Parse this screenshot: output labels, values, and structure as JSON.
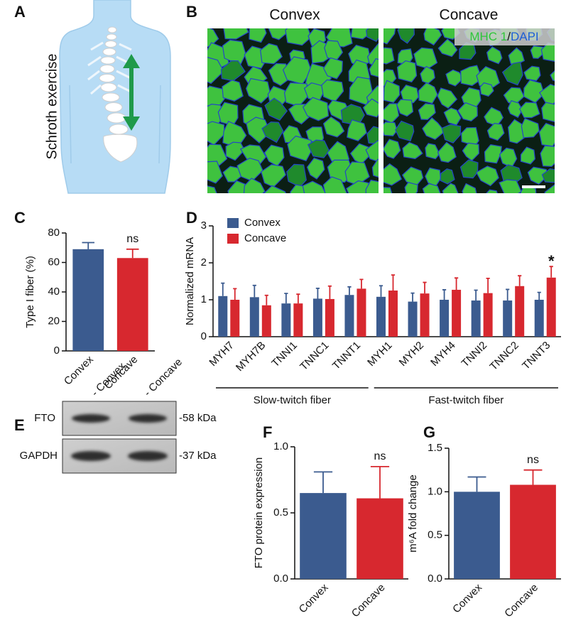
{
  "panel_a": {
    "label": "A",
    "caption": "Schroth exercise"
  },
  "panel_b": {
    "label": "B",
    "columns": [
      "Convex",
      "Concave"
    ],
    "stain": [
      "MHC 1",
      "/",
      "DAPI"
    ]
  },
  "panel_e": {
    "label": "E",
    "lanes": [
      "- Convex",
      "- Concave"
    ],
    "rows": [
      {
        "protein": "FTO",
        "size": "-58 kDa"
      },
      {
        "protein": "GAPDH",
        "size": "-37 kDa"
      }
    ]
  },
  "chart_data": [
    {
      "panel": "C",
      "type": "bar",
      "ylabel": "Type I fiber (%)",
      "categories": [
        "Convex",
        "Concave"
      ],
      "values": [
        69,
        63
      ],
      "errors": [
        4.5,
        6
      ],
      "colors": [
        "#3b5b8f",
        "#d7282f"
      ],
      "ylim": [
        0,
        80
      ],
      "yticks": [
        0,
        20,
        40,
        60,
        80
      ],
      "annotations": [
        {
          "text": "ns",
          "category": "Concave"
        }
      ]
    },
    {
      "panel": "D",
      "type": "grouped_bar",
      "ylabel": "Normalized mRNA",
      "categories": [
        "MYH7",
        "MYH7B",
        "TNNI1",
        "TNNC1",
        "TNNT1",
        "MYH1",
        "MYH2",
        "MYH4",
        "TNNI2",
        "TNNC2",
        "TNNT3"
      ],
      "series": [
        {
          "name": "Convex",
          "color": "#3b5b8f",
          "values": [
            1.1,
            1.07,
            0.9,
            1.03,
            1.13,
            1.08,
            0.95,
            1.0,
            0.98,
            0.98,
            1.0
          ],
          "errors": [
            0.35,
            0.32,
            0.27,
            0.28,
            0.22,
            0.3,
            0.23,
            0.27,
            0.28,
            0.3,
            0.2
          ]
        },
        {
          "name": "Concave",
          "color": "#d7282f",
          "values": [
            1.0,
            0.85,
            0.9,
            1.02,
            1.3,
            1.25,
            1.17,
            1.27,
            1.18,
            1.37,
            1.6
          ],
          "errors": [
            0.3,
            0.27,
            0.25,
            0.35,
            0.25,
            0.42,
            0.3,
            0.32,
            0.4,
            0.28,
            0.3
          ]
        }
      ],
      "ylim": [
        0,
        3
      ],
      "yticks": [
        0,
        1,
        2,
        3
      ],
      "legend": "upper left",
      "groups": [
        {
          "label": "Slow-twitch fiber",
          "size": 5
        },
        {
          "label": "Fast-twitch fiber",
          "size": 6
        }
      ],
      "annotations": [
        {
          "text": "*",
          "category": "TNNT3",
          "series": "Concave"
        }
      ]
    },
    {
      "panel": "F",
      "type": "bar",
      "ylabel": "FTO protein expression",
      "categories": [
        "Convex",
        "Concave"
      ],
      "values": [
        0.65,
        0.61
      ],
      "errors": [
        0.16,
        0.24
      ],
      "colors": [
        "#3b5b8f",
        "#d7282f"
      ],
      "ylim": [
        0,
        1
      ],
      "yticks": [
        {
          "value": 0,
          "label": "0.0"
        },
        {
          "value": 0.5,
          "label": "0.5"
        },
        {
          "value": 1,
          "label": "1.0"
        }
      ],
      "annotations": [
        {
          "text": "ns",
          "category": "Concave"
        }
      ]
    },
    {
      "panel": "G",
      "type": "bar",
      "ylabel": "m⁶A fold change",
      "categories": [
        "Convex",
        "Concave"
      ],
      "values": [
        1.0,
        1.08
      ],
      "errors": [
        0.17,
        0.17
      ],
      "colors": [
        "#3b5b8f",
        "#d7282f"
      ],
      "ylim": [
        0,
        1.5
      ],
      "yticks": [
        {
          "value": 0,
          "label": "0.0"
        },
        {
          "value": 0.5,
          "label": "0.5"
        },
        {
          "value": 1,
          "label": "1.0"
        },
        {
          "value": 1.5,
          "label": "1.5"
        }
      ],
      "annotations": [
        {
          "text": "ns",
          "category": "Concave"
        }
      ]
    }
  ]
}
